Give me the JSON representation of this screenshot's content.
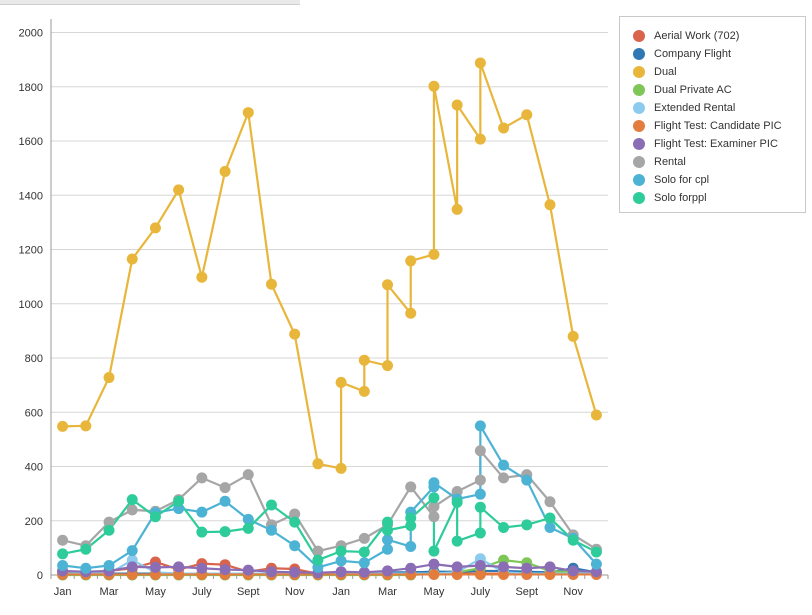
{
  "chart_data": {
    "type": "line",
    "title": "",
    "xlabel": "",
    "ylabel": "",
    "ylim": [
      0,
      2050
    ],
    "y_ticks": [
      "0",
      "200",
      "400",
      "600",
      "800",
      "1000",
      "1200",
      "1400",
      "1600",
      "1800",
      "2000"
    ],
    "x_ticks": [
      "Jan",
      "Mar",
      "May",
      "July",
      "Sept",
      "Nov",
      "Jan",
      "Mar",
      "May",
      "July",
      "Sept",
      "Nov"
    ],
    "x_tick_positions": [
      0.5,
      2.5,
      4.5,
      6.5,
      8.5,
      10.5,
      12.5,
      14.5,
      16.5,
      18.5,
      20.5,
      22.5
    ],
    "x_range": [
      0,
      24
    ],
    "grid": "horizontal",
    "legend_position": "right",
    "series": [
      {
        "name": "Aerial Work (702)",
        "color": "#d9634b",
        "points": [
          [
            0.5,
            10
          ],
          [
            1.5,
            5
          ],
          [
            2.5,
            15
          ],
          [
            3.5,
            25
          ],
          [
            4.5,
            48
          ],
          [
            5.5,
            20
          ],
          [
            6.5,
            42
          ],
          [
            7.5,
            38
          ],
          [
            8.5,
            12
          ],
          [
            9.5,
            25
          ],
          [
            10.5,
            22
          ],
          [
            11.5,
            5
          ],
          [
            12.5,
            5
          ],
          [
            13.5,
            5
          ],
          [
            14.5,
            5
          ],
          [
            15.5,
            5
          ],
          [
            16.5,
            5
          ],
          [
            17.5,
            5
          ],
          [
            18.5,
            5
          ],
          [
            19.5,
            5
          ],
          [
            20.5,
            5
          ],
          [
            21.5,
            5
          ],
          [
            22.5,
            5
          ],
          [
            23.5,
            5
          ]
        ]
      },
      {
        "name": "Company Flight",
        "color": "#2f78b3",
        "points": [
          [
            0.5,
            5
          ],
          [
            1.5,
            5
          ],
          [
            2.5,
            5
          ],
          [
            3.5,
            5
          ],
          [
            4.5,
            5
          ],
          [
            5.5,
            5
          ],
          [
            6.5,
            5
          ],
          [
            7.5,
            5
          ],
          [
            8.5,
            5
          ],
          [
            9.5,
            5
          ],
          [
            10.5,
            5
          ],
          [
            11.5,
            5
          ],
          [
            12.5,
            8
          ],
          [
            13.5,
            8
          ],
          [
            14.5,
            10
          ],
          [
            15.5,
            10
          ],
          [
            16.5,
            12
          ],
          [
            17.5,
            12
          ],
          [
            18.5,
            15
          ],
          [
            19.5,
            15
          ],
          [
            20.5,
            12
          ],
          [
            21.5,
            10
          ],
          [
            22.5,
            25
          ],
          [
            23.5,
            10
          ]
        ]
      },
      {
        "name": "Dual",
        "color": "#e8b63b",
        "points": [
          [
            0.5,
            548
          ],
          [
            1.5,
            550
          ],
          [
            2.5,
            728
          ],
          [
            3.5,
            1165
          ],
          [
            4.5,
            1280
          ],
          [
            5.5,
            1420
          ],
          [
            6.5,
            1098
          ],
          [
            7.5,
            1488
          ],
          [
            8.5,
            1705
          ],
          [
            9.5,
            1072
          ],
          [
            10.5,
            888
          ],
          [
            11.5,
            410
          ],
          [
            12.5,
            393
          ],
          [
            12.5,
            710
          ],
          [
            13.5,
            677
          ],
          [
            13.5,
            792
          ],
          [
            14.5,
            772
          ],
          [
            14.5,
            1070
          ],
          [
            15.5,
            965
          ],
          [
            15.5,
            1158
          ],
          [
            16.5,
            1182
          ],
          [
            16.5,
            1802
          ],
          [
            17.5,
            1348
          ],
          [
            17.5,
            1733
          ],
          [
            18.5,
            1607
          ],
          [
            18.5,
            1888
          ],
          [
            19.5,
            1648
          ],
          [
            20.5,
            1697
          ],
          [
            21.5,
            1365
          ],
          [
            22.5,
            880
          ],
          [
            23.5,
            590
          ]
        ]
      },
      {
        "name": "Dual Private AC",
        "color": "#7fc659",
        "points": [
          [
            0.5,
            0
          ],
          [
            1.5,
            0
          ],
          [
            2.5,
            0
          ],
          [
            3.5,
            0
          ],
          [
            4.5,
            0
          ],
          [
            5.5,
            0
          ],
          [
            6.5,
            0
          ],
          [
            7.5,
            0
          ],
          [
            8.5,
            0
          ],
          [
            9.5,
            0
          ],
          [
            10.5,
            0
          ],
          [
            11.5,
            0
          ],
          [
            12.5,
            0
          ],
          [
            13.5,
            0
          ],
          [
            14.5,
            0
          ],
          [
            15.5,
            0
          ],
          [
            16.5,
            5
          ],
          [
            17.5,
            10
          ],
          [
            18.5,
            25
          ],
          [
            19.5,
            55
          ],
          [
            20.5,
            45
          ],
          [
            21.5,
            15
          ],
          [
            22.5,
            10
          ],
          [
            23.5,
            5
          ]
        ]
      },
      {
        "name": "Extended Rental",
        "color": "#8ccbed",
        "points": [
          [
            0.5,
            5
          ],
          [
            1.5,
            5
          ],
          [
            2.5,
            5
          ],
          [
            3.5,
            55
          ],
          [
            4.5,
            10
          ],
          [
            5.5,
            5
          ],
          [
            6.5,
            5
          ],
          [
            7.5,
            5
          ],
          [
            8.5,
            5
          ],
          [
            9.5,
            5
          ],
          [
            10.5,
            5
          ],
          [
            11.5,
            5
          ],
          [
            12.5,
            5
          ],
          [
            13.5,
            5
          ],
          [
            14.5,
            5
          ],
          [
            15.5,
            5
          ],
          [
            16.5,
            5
          ],
          [
            17.5,
            10
          ],
          [
            18.5,
            60
          ],
          [
            19.5,
            10
          ],
          [
            20.5,
            5
          ],
          [
            21.5,
            5
          ],
          [
            22.5,
            5
          ],
          [
            23.5,
            5
          ]
        ]
      },
      {
        "name": "Flight Test: Candidate PIC",
        "color": "#e27d3e",
        "points": [
          [
            0.5,
            2
          ],
          [
            1.5,
            2
          ],
          [
            2.5,
            2
          ],
          [
            3.5,
            2
          ],
          [
            4.5,
            2
          ],
          [
            5.5,
            2
          ],
          [
            6.5,
            2
          ],
          [
            7.5,
            2
          ],
          [
            8.5,
            2
          ],
          [
            9.5,
            2
          ],
          [
            10.5,
            2
          ],
          [
            11.5,
            2
          ],
          [
            12.5,
            2
          ],
          [
            13.5,
            2
          ],
          [
            14.5,
            2
          ],
          [
            15.5,
            2
          ],
          [
            16.5,
            2
          ],
          [
            17.5,
            2
          ],
          [
            18.5,
            2
          ],
          [
            19.5,
            2
          ],
          [
            20.5,
            2
          ],
          [
            21.5,
            2
          ],
          [
            22.5,
            2
          ],
          [
            23.5,
            2
          ]
        ]
      },
      {
        "name": "Flight Test: Examiner PIC",
        "color": "#8b6db5",
        "points": [
          [
            0.5,
            15
          ],
          [
            1.5,
            12
          ],
          [
            2.5,
            15
          ],
          [
            3.5,
            30
          ],
          [
            4.5,
            28
          ],
          [
            5.5,
            30
          ],
          [
            6.5,
            25
          ],
          [
            7.5,
            20
          ],
          [
            8.5,
            18
          ],
          [
            9.5,
            12
          ],
          [
            10.5,
            10
          ],
          [
            11.5,
            8
          ],
          [
            12.5,
            12
          ],
          [
            13.5,
            10
          ],
          [
            14.5,
            15
          ],
          [
            15.5,
            25
          ],
          [
            16.5,
            40
          ],
          [
            17.5,
            30
          ],
          [
            18.5,
            35
          ],
          [
            19.5,
            30
          ],
          [
            20.5,
            25
          ],
          [
            21.5,
            30
          ],
          [
            22.5,
            15
          ],
          [
            23.5,
            12
          ]
        ]
      },
      {
        "name": "Rental",
        "color": "#a6a6a6",
        "points": [
          [
            0.5,
            128
          ],
          [
            1.5,
            108
          ],
          [
            2.5,
            195
          ],
          [
            3.5,
            240
          ],
          [
            4.5,
            235
          ],
          [
            5.5,
            278
          ],
          [
            6.5,
            358
          ],
          [
            7.5,
            322
          ],
          [
            8.5,
            370
          ],
          [
            9.5,
            185
          ],
          [
            10.5,
            225
          ],
          [
            11.5,
            88
          ],
          [
            12.5,
            108
          ],
          [
            13.5,
            135
          ],
          [
            14.5,
            185
          ],
          [
            15.5,
            325
          ],
          [
            16.5,
            215
          ],
          [
            16.5,
            252
          ],
          [
            17.5,
            308
          ],
          [
            18.5,
            350
          ],
          [
            18.5,
            458
          ],
          [
            19.5,
            358
          ],
          [
            20.5,
            370
          ],
          [
            21.5,
            270
          ],
          [
            22.5,
            148
          ],
          [
            23.5,
            95
          ]
        ]
      },
      {
        "name": "Solo for cpl",
        "color": "#4db3d4",
        "points": [
          [
            0.5,
            35
          ],
          [
            1.5,
            25
          ],
          [
            2.5,
            35
          ],
          [
            3.5,
            90
          ],
          [
            4.5,
            230
          ],
          [
            5.5,
            245
          ],
          [
            6.5,
            232
          ],
          [
            7.5,
            272
          ],
          [
            8.5,
            205
          ],
          [
            9.5,
            165
          ],
          [
            10.5,
            108
          ],
          [
            11.5,
            28
          ],
          [
            12.5,
            52
          ],
          [
            13.5,
            45
          ],
          [
            14.5,
            95
          ],
          [
            14.5,
            130
          ],
          [
            15.5,
            105
          ],
          [
            15.5,
            232
          ],
          [
            16.5,
            325
          ],
          [
            16.5,
            340
          ],
          [
            17.5,
            280
          ],
          [
            18.5,
            298
          ],
          [
            18.5,
            550
          ],
          [
            19.5,
            405
          ],
          [
            20.5,
            350
          ],
          [
            21.5,
            175
          ],
          [
            22.5,
            135
          ],
          [
            23.5,
            40
          ]
        ]
      },
      {
        "name": "Solo forppl",
        "color": "#2ecc9a",
        "points": [
          [
            0.5,
            78
          ],
          [
            1.5,
            95
          ],
          [
            2.5,
            165
          ],
          [
            3.5,
            278
          ],
          [
            4.5,
            215
          ],
          [
            5.5,
            272
          ],
          [
            6.5,
            158
          ],
          [
            7.5,
            160
          ],
          [
            8.5,
            172
          ],
          [
            9.5,
            258
          ],
          [
            10.5,
            195
          ],
          [
            11.5,
            55
          ],
          [
            12.5,
            88
          ],
          [
            13.5,
            85
          ],
          [
            14.5,
            195
          ],
          [
            14.5,
            165
          ],
          [
            15.5,
            182
          ],
          [
            15.5,
            210
          ],
          [
            16.5,
            285
          ],
          [
            16.5,
            88
          ],
          [
            17.5,
            268
          ],
          [
            17.5,
            125
          ],
          [
            18.5,
            155
          ],
          [
            18.5,
            250
          ],
          [
            19.5,
            175
          ],
          [
            20.5,
            185
          ],
          [
            21.5,
            210
          ],
          [
            22.5,
            128
          ],
          [
            23.5,
            85
          ]
        ]
      }
    ]
  }
}
